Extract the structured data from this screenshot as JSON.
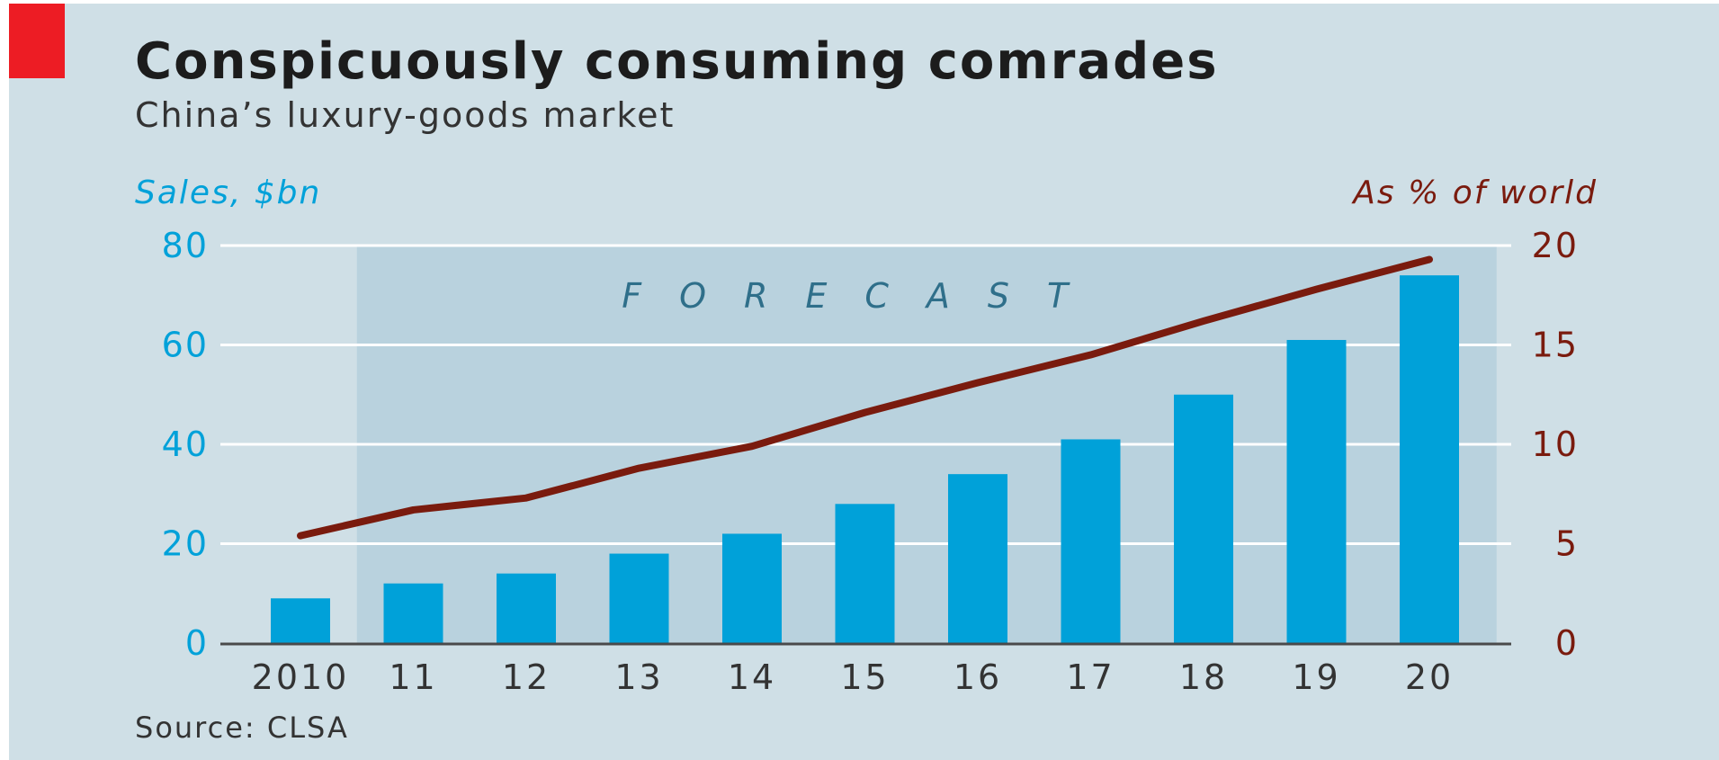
{
  "header": {
    "title": "Conspicuously consuming comrades",
    "subtitle": "China’s luxury-goods market"
  },
  "footer": {
    "source": "Source: CLSA"
  },
  "colors": {
    "brand_red": "#ed1c24",
    "bar_blue": "#00a1d9",
    "line_brown": "#7a1b0e",
    "panel_bg": "#cfdfe6",
    "forecast_bg": "#b9d2de"
  },
  "chart_data": {
    "type": "bar",
    "categories": [
      "2010",
      "11",
      "12",
      "13",
      "14",
      "15",
      "16",
      "17",
      "18",
      "19",
      "20"
    ],
    "series": [
      {
        "axis": "left",
        "type": "bar",
        "values": [
          9,
          12,
          14,
          18,
          22,
          28,
          34,
          41,
          50,
          61,
          74
        ]
      },
      {
        "axis": "right",
        "type": "line",
        "values": [
          5.4,
          6.7,
          7.3,
          8.8,
          9.9,
          11.6,
          13.1,
          14.5,
          16.2,
          17.8,
          19.3
        ]
      }
    ],
    "left_axis": {
      "label": "Sales, $bn",
      "ylim": [
        0,
        80
      ],
      "ticks": [
        "0",
        "20",
        "40",
        "60",
        "80"
      ]
    },
    "right_axis": {
      "label": "As % of world",
      "ylim": [
        0,
        20
      ],
      "ticks": [
        "0",
        "5",
        "10",
        "15",
        "20"
      ]
    },
    "forecast_label": "FORECAST",
    "forecast_start": "11",
    "grid": true
  }
}
